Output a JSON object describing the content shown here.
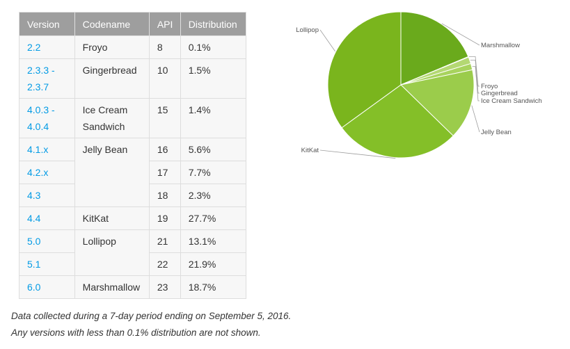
{
  "table": {
    "headers": [
      "Version",
      "Codename",
      "API",
      "Distribution"
    ],
    "rows": [
      {
        "version": "2.2",
        "codename": "Froyo",
        "api": "8",
        "distribution": "0.1%"
      },
      {
        "version": "2.3.3 -\n2.3.7",
        "codename": "Gingerbread",
        "api": "10",
        "distribution": "1.5%"
      },
      {
        "version": "4.0.3 -\n4.0.4",
        "codename": "Ice Cream\nSandwich",
        "api": "15",
        "distribution": "1.4%"
      },
      {
        "version": "4.1.x",
        "codename": "Jelly Bean",
        "api": "16",
        "distribution": "5.6%"
      },
      {
        "version": "4.2.x",
        "codename": "",
        "api": "17",
        "distribution": "7.7%"
      },
      {
        "version": "4.3",
        "codename": "",
        "api": "18",
        "distribution": "2.3%"
      },
      {
        "version": "4.4",
        "codename": "KitKat",
        "api": "19",
        "distribution": "27.7%"
      },
      {
        "version": "5.0",
        "codename": "Lollipop",
        "api": "21",
        "distribution": "13.1%"
      },
      {
        "version": "5.1",
        "codename": "",
        "api": "22",
        "distribution": "21.9%"
      },
      {
        "version": "6.0",
        "codename": "Marshmallow",
        "api": "23",
        "distribution": "18.7%"
      }
    ]
  },
  "footnotes": [
    "Data collected during a 7-day period ending on September 5, 2016.",
    "Any versions with less than 0.1% distribution are not shown."
  ],
  "colors": {
    "link": "#039be5",
    "header_bg": "#9e9e9e"
  },
  "chart_data": {
    "type": "pie",
    "categories": [
      "Marshmallow",
      "Froyo",
      "Gingerbread",
      "Ice Cream Sandwich",
      "Jelly Bean",
      "KitKat",
      "Lollipop"
    ],
    "values": [
      18.7,
      0.1,
      1.5,
      1.4,
      15.6,
      27.7,
      35.0
    ],
    "colors": [
      "#6aaa1c",
      "#c2e08a",
      "#b4d873",
      "#a8d35e",
      "#9bcc4b",
      "#84bf28",
      "#7ab51d"
    ],
    "start_angle_deg": -90,
    "direction": "clockwise",
    "legend_placement": "leader-line labels around pie"
  }
}
